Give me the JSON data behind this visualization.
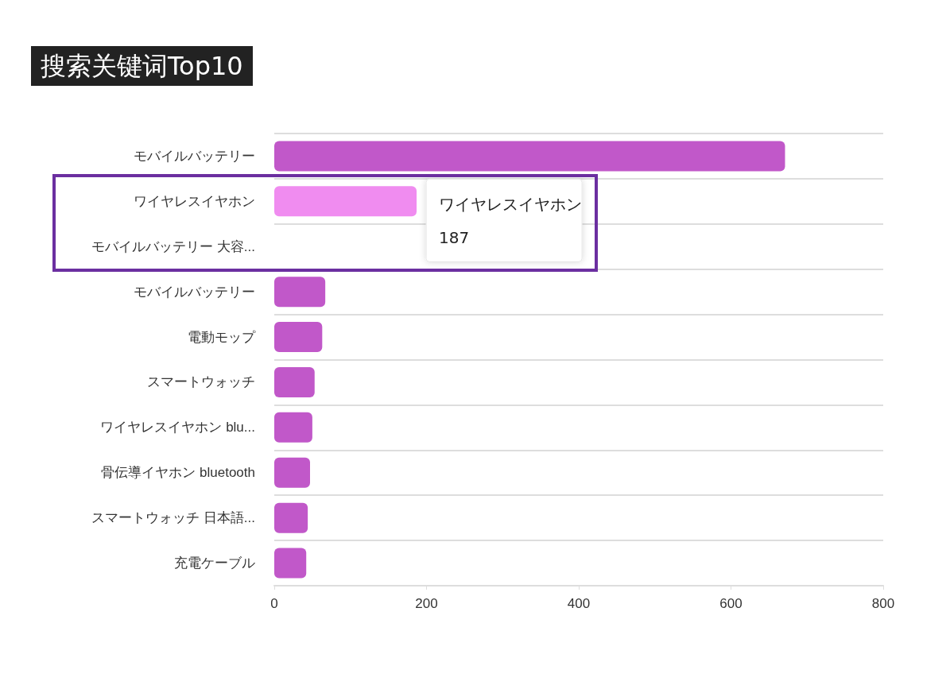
{
  "chart_data": {
    "type": "bar",
    "orientation": "horizontal",
    "title": "搜索关键词Top10",
    "categories": [
      "モバイルバッテリー",
      "ワイヤレスイヤホン",
      "モバイルバッテリー 大容...",
      "モバイルバッテリー",
      "電動モップ",
      "スマートウォッチ",
      "ワイヤレスイヤホン blu...",
      "骨伝導イヤホン bluetooth",
      "スマートウォッチ 日本語...",
      "充電ケーブル"
    ],
    "values": [
      671,
      187,
      null,
      67,
      63,
      53,
      50,
      47,
      44,
      42
    ],
    "colors": [
      "#c158c9",
      "#f08cf0",
      "#c158c9",
      "#c158c9",
      "#c158c9",
      "#c158c9",
      "#c158c9",
      "#c158c9",
      "#c158c9",
      "#c158c9"
    ],
    "xlim": [
      0,
      800
    ],
    "xticks": [
      0,
      200,
      400,
      600,
      800
    ],
    "grid": "y",
    "annotations": [
      {
        "text": "ワイヤレスイヤホン\n187",
        "x": 187,
        "y": "ワイヤレスイヤホン"
      }
    ]
  }
}
